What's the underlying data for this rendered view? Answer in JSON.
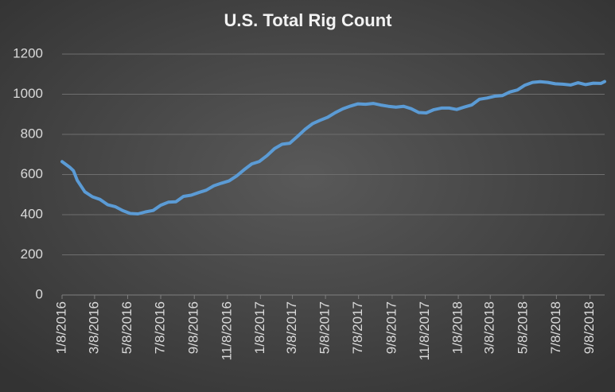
{
  "chart_data": {
    "type": "line",
    "title": "U.S. Total Rig Count",
    "x": [
      "2016-01-08",
      "2016-01-22",
      "2016-01-29",
      "2016-02-05",
      "2016-02-19",
      "2016-03-04",
      "2016-03-18",
      "2016-04-01",
      "2016-04-15",
      "2016-04-29",
      "2016-05-13",
      "2016-05-27",
      "2016-06-10",
      "2016-06-24",
      "2016-07-08",
      "2016-07-22",
      "2016-08-05",
      "2016-08-19",
      "2016-09-02",
      "2016-09-16",
      "2016-09-30",
      "2016-10-14",
      "2016-10-28",
      "2016-11-11",
      "2016-11-25",
      "2016-12-09",
      "2016-12-23",
      "2017-01-06",
      "2017-01-20",
      "2017-02-03",
      "2017-02-17",
      "2017-03-03",
      "2017-03-17",
      "2017-03-31",
      "2017-04-14",
      "2017-04-28",
      "2017-05-12",
      "2017-05-26",
      "2017-06-09",
      "2017-06-23",
      "2017-07-07",
      "2017-07-21",
      "2017-08-04",
      "2017-08-18",
      "2017-09-01",
      "2017-09-15",
      "2017-09-29",
      "2017-10-13",
      "2017-10-27",
      "2017-11-10",
      "2017-11-24",
      "2017-12-08",
      "2017-12-22",
      "2018-01-05",
      "2018-01-19",
      "2018-02-02",
      "2018-02-16",
      "2018-03-02",
      "2018-03-16",
      "2018-03-30",
      "2018-04-13",
      "2018-04-27",
      "2018-05-11",
      "2018-05-25",
      "2018-06-08",
      "2018-06-22",
      "2018-07-06",
      "2018-07-20",
      "2018-08-03",
      "2018-08-17",
      "2018-08-31",
      "2018-09-14",
      "2018-09-28",
      "2018-10-05"
    ],
    "series": [
      {
        "name": "U.S. Total Rig Count",
        "color": "#5b9bd5",
        "values": [
          664,
          637,
          619,
          571,
          514,
          489,
          476,
          450,
          440,
          420,
          406,
          404,
          414,
          421,
          447,
          462,
          464,
          491,
          497,
          510,
          522,
          544,
          557,
          568,
          593,
          624,
          653,
          665,
          694,
          729,
          751,
          756,
          789,
          824,
          853,
          870,
          885,
          908,
          927,
          941,
          952,
          950,
          954,
          946,
          940,
          936,
          940,
          928,
          909,
          907,
          923,
          931,
          931,
          924,
          936,
          947,
          975,
          981,
          990,
          993,
          1011,
          1021,
          1045,
          1059,
          1062,
          1059,
          1052,
          1050,
          1046,
          1057,
          1048,
          1055,
          1054,
          1063
        ]
      }
    ],
    "xlim": [
      "2016-01-08",
      "2018-10-05"
    ],
    "xticks": [
      {
        "value": "2016-01-08",
        "label": "1/8/2016"
      },
      {
        "value": "2016-03-08",
        "label": "3/8/2016"
      },
      {
        "value": "2016-05-08",
        "label": "5/8/2016"
      },
      {
        "value": "2016-07-08",
        "label": "7/8/2016"
      },
      {
        "value": "2016-09-08",
        "label": "9/8/2016"
      },
      {
        "value": "2016-11-08",
        "label": "11/8/2016"
      },
      {
        "value": "2017-01-08",
        "label": "1/8/2017"
      },
      {
        "value": "2017-03-08",
        "label": "3/8/2017"
      },
      {
        "value": "2017-05-08",
        "label": "5/8/2017"
      },
      {
        "value": "2017-07-08",
        "label": "7/8/2017"
      },
      {
        "value": "2017-09-08",
        "label": "9/8/2017"
      },
      {
        "value": "2017-11-08",
        "label": "11/8/2017"
      },
      {
        "value": "2018-01-08",
        "label": "1/8/2018"
      },
      {
        "value": "2018-03-08",
        "label": "3/8/2018"
      },
      {
        "value": "2018-05-08",
        "label": "5/8/2018"
      },
      {
        "value": "2018-07-08",
        "label": "7/8/2018"
      },
      {
        "value": "2018-09-08",
        "label": "9/8/2018"
      }
    ],
    "ylim": [
      0,
      1200
    ],
    "yticks": [
      0,
      200,
      400,
      600,
      800,
      1000,
      1200
    ],
    "grid": true
  }
}
